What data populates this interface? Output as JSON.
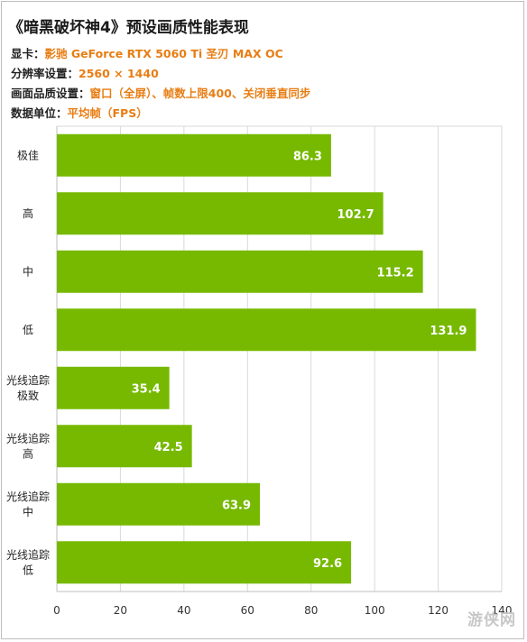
{
  "header": {
    "title": "《暗黑破坏神4》预设画质性能表现",
    "gpu_label": "显卡：",
    "gpu_value": "影驰 GeForce RTX 5060 Ti 圣刃 MAX OC",
    "resolution_label": "分辨率设置：",
    "resolution_value": "2560 × 1440",
    "quality_label": "画面品质设置：",
    "quality_value": "窗口（全屏）、帧数上限400、关闭垂直同步",
    "unit_label": "数据单位：",
    "unit_value": "平均帧（FPS）"
  },
  "watermark": "游侠网",
  "colors": {
    "bar_fill": "#76b900",
    "bar_label": "#ffffff",
    "accent_text": "#e87d13",
    "grid": "#d9d9d9"
  },
  "chart_data": {
    "type": "bar",
    "orientation": "horizontal",
    "categories": [
      [
        "极佳"
      ],
      [
        "高"
      ],
      [
        "中"
      ],
      [
        "低"
      ],
      [
        "光线追踪",
        "极致"
      ],
      [
        "光线追踪",
        "高"
      ],
      [
        "光线追踪",
        "中"
      ],
      [
        "光线追踪",
        "低"
      ]
    ],
    "values": [
      86.3,
      102.7,
      115.2,
      131.9,
      35.4,
      42.5,
      63.9,
      92.6
    ],
    "value_labels": [
      "86.3",
      "102.7",
      "115.2",
      "131.9",
      "35.4",
      "42.5",
      "63.9",
      "92.6"
    ],
    "xlim": [
      0,
      140
    ],
    "xticks": [
      "0",
      "20",
      "40",
      "60",
      "80",
      "100",
      "120",
      "140"
    ],
    "grid": true,
    "legend": "none"
  }
}
